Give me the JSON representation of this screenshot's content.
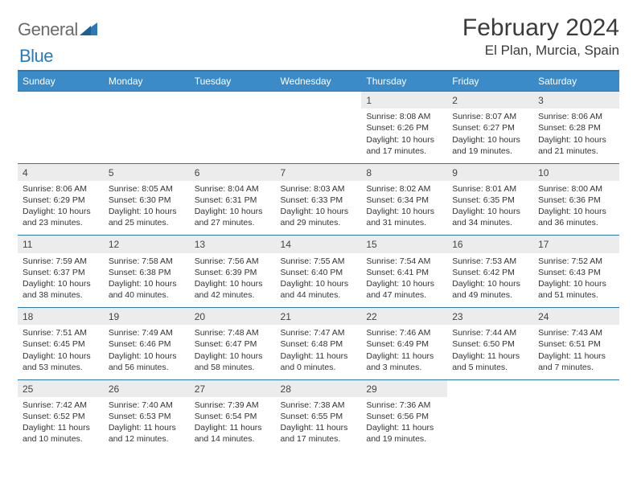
{
  "brand": {
    "text1": "General",
    "text2": "Blue",
    "color_gray": "#6b6b6b",
    "color_blue": "#2a7ab9"
  },
  "title": "February 2024",
  "location": "El Plan, Murcia, Spain",
  "colors": {
    "header_bg": "#3b8bc9",
    "header_fg": "#ffffff",
    "divider": "#2a7ab9",
    "daynum_bg": "#ececec",
    "text": "#333333"
  },
  "weekdays": [
    "Sunday",
    "Monday",
    "Tuesday",
    "Wednesday",
    "Thursday",
    "Friday",
    "Saturday"
  ],
  "weeks": [
    [
      null,
      null,
      null,
      null,
      {
        "n": "1",
        "sr": "8:08 AM",
        "ss": "6:26 PM",
        "dl": "10 hours and 17 minutes."
      },
      {
        "n": "2",
        "sr": "8:07 AM",
        "ss": "6:27 PM",
        "dl": "10 hours and 19 minutes."
      },
      {
        "n": "3",
        "sr": "8:06 AM",
        "ss": "6:28 PM",
        "dl": "10 hours and 21 minutes."
      }
    ],
    [
      {
        "n": "4",
        "sr": "8:06 AM",
        "ss": "6:29 PM",
        "dl": "10 hours and 23 minutes."
      },
      {
        "n": "5",
        "sr": "8:05 AM",
        "ss": "6:30 PM",
        "dl": "10 hours and 25 minutes."
      },
      {
        "n": "6",
        "sr": "8:04 AM",
        "ss": "6:31 PM",
        "dl": "10 hours and 27 minutes."
      },
      {
        "n": "7",
        "sr": "8:03 AM",
        "ss": "6:33 PM",
        "dl": "10 hours and 29 minutes."
      },
      {
        "n": "8",
        "sr": "8:02 AM",
        "ss": "6:34 PM",
        "dl": "10 hours and 31 minutes."
      },
      {
        "n": "9",
        "sr": "8:01 AM",
        "ss": "6:35 PM",
        "dl": "10 hours and 34 minutes."
      },
      {
        "n": "10",
        "sr": "8:00 AM",
        "ss": "6:36 PM",
        "dl": "10 hours and 36 minutes."
      }
    ],
    [
      {
        "n": "11",
        "sr": "7:59 AM",
        "ss": "6:37 PM",
        "dl": "10 hours and 38 minutes."
      },
      {
        "n": "12",
        "sr": "7:58 AM",
        "ss": "6:38 PM",
        "dl": "10 hours and 40 minutes."
      },
      {
        "n": "13",
        "sr": "7:56 AM",
        "ss": "6:39 PM",
        "dl": "10 hours and 42 minutes."
      },
      {
        "n": "14",
        "sr": "7:55 AM",
        "ss": "6:40 PM",
        "dl": "10 hours and 44 minutes."
      },
      {
        "n": "15",
        "sr": "7:54 AM",
        "ss": "6:41 PM",
        "dl": "10 hours and 47 minutes."
      },
      {
        "n": "16",
        "sr": "7:53 AM",
        "ss": "6:42 PM",
        "dl": "10 hours and 49 minutes."
      },
      {
        "n": "17",
        "sr": "7:52 AM",
        "ss": "6:43 PM",
        "dl": "10 hours and 51 minutes."
      }
    ],
    [
      {
        "n": "18",
        "sr": "7:51 AM",
        "ss": "6:45 PM",
        "dl": "10 hours and 53 minutes."
      },
      {
        "n": "19",
        "sr": "7:49 AM",
        "ss": "6:46 PM",
        "dl": "10 hours and 56 minutes."
      },
      {
        "n": "20",
        "sr": "7:48 AM",
        "ss": "6:47 PM",
        "dl": "10 hours and 58 minutes."
      },
      {
        "n": "21",
        "sr": "7:47 AM",
        "ss": "6:48 PM",
        "dl": "11 hours and 0 minutes."
      },
      {
        "n": "22",
        "sr": "7:46 AM",
        "ss": "6:49 PM",
        "dl": "11 hours and 3 minutes."
      },
      {
        "n": "23",
        "sr": "7:44 AM",
        "ss": "6:50 PM",
        "dl": "11 hours and 5 minutes."
      },
      {
        "n": "24",
        "sr": "7:43 AM",
        "ss": "6:51 PM",
        "dl": "11 hours and 7 minutes."
      }
    ],
    [
      {
        "n": "25",
        "sr": "7:42 AM",
        "ss": "6:52 PM",
        "dl": "11 hours and 10 minutes."
      },
      {
        "n": "26",
        "sr": "7:40 AM",
        "ss": "6:53 PM",
        "dl": "11 hours and 12 minutes."
      },
      {
        "n": "27",
        "sr": "7:39 AM",
        "ss": "6:54 PM",
        "dl": "11 hours and 14 minutes."
      },
      {
        "n": "28",
        "sr": "7:38 AM",
        "ss": "6:55 PM",
        "dl": "11 hours and 17 minutes."
      },
      {
        "n": "29",
        "sr": "7:36 AM",
        "ss": "6:56 PM",
        "dl": "11 hours and 19 minutes."
      },
      null,
      null
    ]
  ],
  "labels": {
    "sunrise": "Sunrise: ",
    "sunset": "Sunset: ",
    "daylight": "Daylight: "
  }
}
